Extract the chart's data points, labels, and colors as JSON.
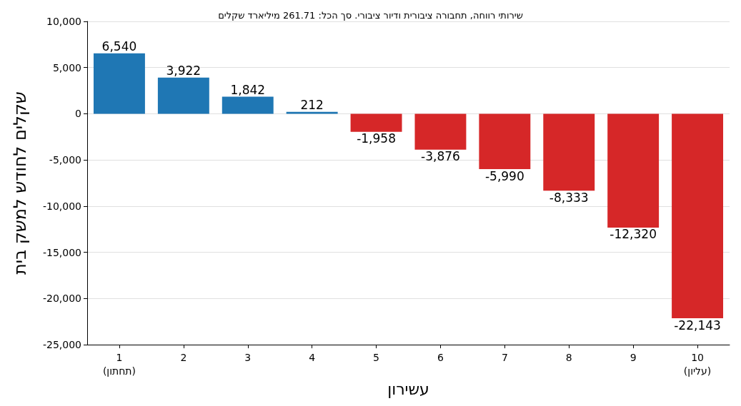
{
  "chart_data": {
    "type": "bar",
    "title": "שירותי רווחה, תחבורה ציבורית ודיור ציבורי. סך הכל: 261.71 מיליארד שקלים",
    "xlabel": "עשירון",
    "ylabel": "שקלים לחודש למשק בית",
    "categories": [
      "1\n(תחתון)",
      "2",
      "3",
      "4",
      "5",
      "6",
      "7",
      "8",
      "9",
      "10\n(עליון)"
    ],
    "values": [
      6540,
      3922,
      1842,
      212,
      -1958,
      -3876,
      -5990,
      -8333,
      -12320,
      -22143
    ],
    "value_labels": [
      "6,540",
      "3,922",
      "1,842",
      "212",
      "-1,958",
      "-3,876",
      "-5,990",
      "-8,333",
      "-12,320",
      "-22,143"
    ],
    "colors": [
      "#1f77b4",
      "#1f77b4",
      "#1f77b4",
      "#1f77b4",
      "#d62728",
      "#d62728",
      "#d62728",
      "#d62728",
      "#d62728",
      "#d62728"
    ],
    "ylim": [
      -25000,
      10000
    ],
    "yticks": [
      {
        "value": -25000,
        "label": "-25,000"
      },
      {
        "value": -20000,
        "label": "-20,000"
      },
      {
        "value": -15000,
        "label": "-15,000"
      },
      {
        "value": -10000,
        "label": "-10,000"
      },
      {
        "value": -5000,
        "label": "-5,000"
      },
      0,
      {
        "value": 5000,
        "label": "5,000"
      },
      {
        "value": 10000,
        "label": "10,000"
      }
    ],
    "grid": "y"
  }
}
